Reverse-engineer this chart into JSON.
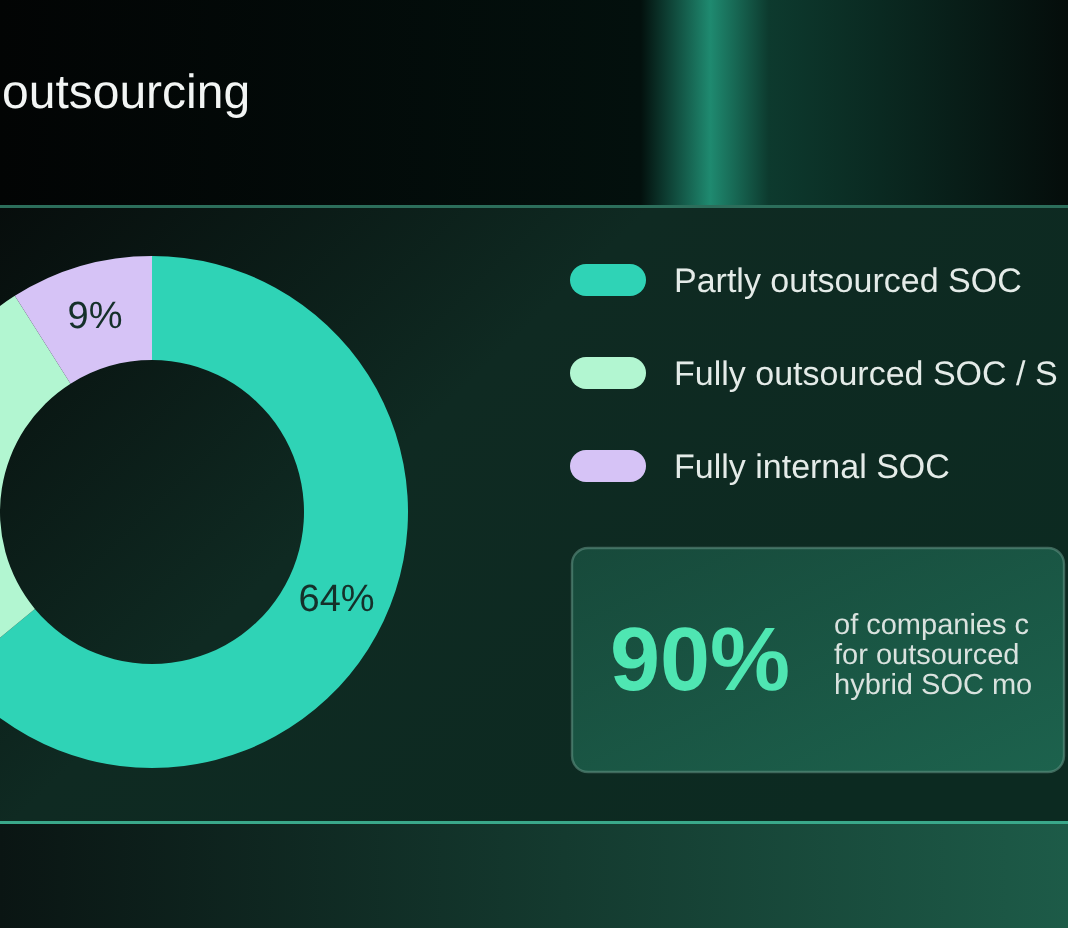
{
  "chart_data": {
    "type": "donut",
    "title": "outsourcing",
    "categories": [
      "Partly outsourced SOC",
      "Fully outsourced SOC / S",
      "Fully internal SOC"
    ],
    "values": [
      64,
      27,
      9
    ],
    "colors": [
      "#2fd3b6",
      "#b2f6d1",
      "#d6c3f6"
    ],
    "value_labels": [
      "64%",
      null,
      "9%"
    ],
    "legend": "right",
    "annotations": [
      "90%",
      "of companies c",
      "for outsourced",
      "hybrid SOC mo"
    ]
  }
}
